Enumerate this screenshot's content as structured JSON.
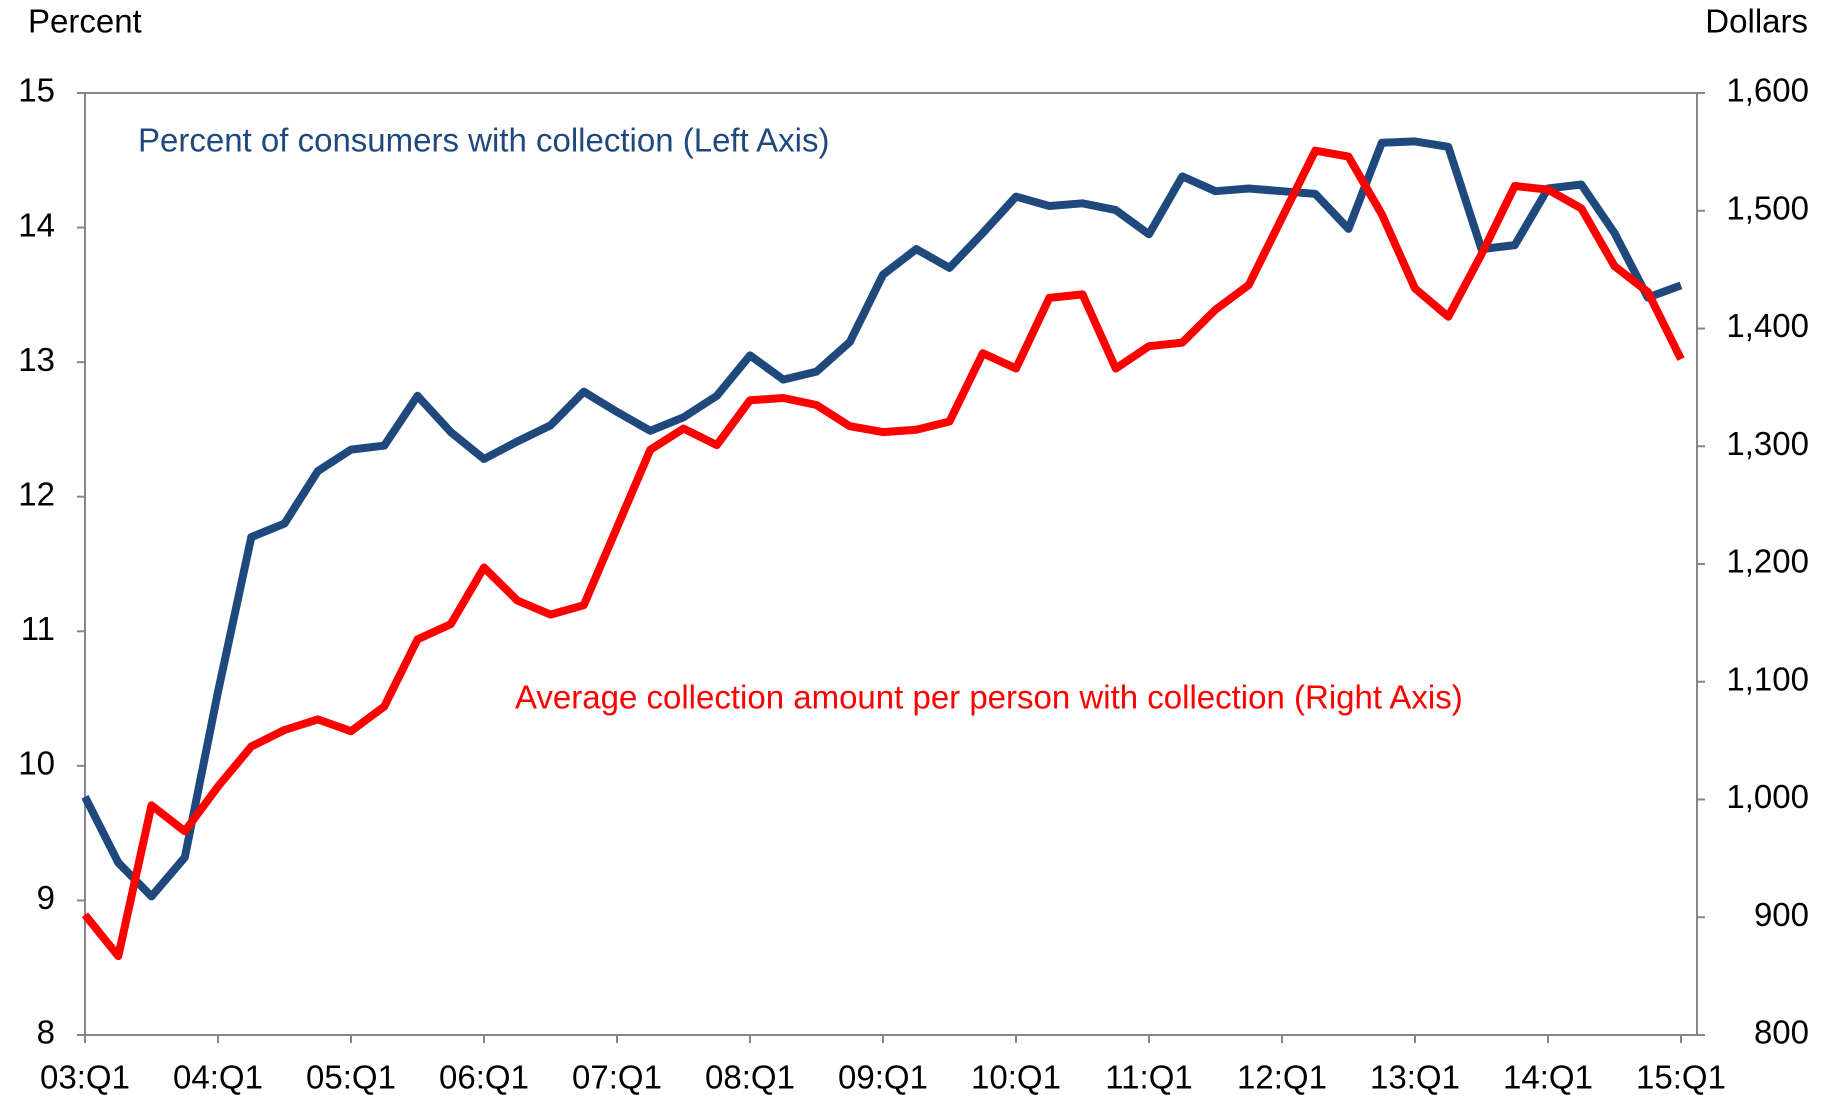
{
  "chart_data": {
    "type": "line",
    "y_label": "Percent",
    "y2_label": "Dollars",
    "categories": [
      "03:Q1",
      null,
      null,
      null,
      "04:Q1",
      null,
      null,
      null,
      "05:Q1",
      null,
      null,
      null,
      "06:Q1",
      null,
      null,
      null,
      "07:Q1",
      null,
      null,
      null,
      "08:Q1",
      null,
      null,
      null,
      "09:Q1",
      null,
      null,
      null,
      "10:Q1",
      null,
      null,
      null,
      "11:Q1",
      null,
      null,
      null,
      "12:Q1",
      null,
      null,
      null,
      "13:Q1",
      null,
      null,
      null,
      "14:Q1",
      null,
      null,
      null,
      "15:Q1"
    ],
    "series": [
      {
        "name": "Percent of consumers with collection (Left Axis)",
        "color": "#1f497d",
        "axis": "y",
        "values": [
          9.77,
          9.28,
          9.03,
          9.32,
          10.55,
          11.7,
          11.8,
          12.19,
          12.35,
          12.38,
          12.75,
          12.48,
          12.28,
          12.41,
          12.53,
          12.78,
          12.63,
          12.49,
          12.59,
          12.75,
          13.05,
          12.87,
          12.93,
          13.15,
          13.65,
          13.84,
          13.7,
          13.96,
          14.23,
          14.16,
          14.18,
          14.13,
          13.95,
          14.38,
          14.27,
          14.29,
          14.27,
          14.25,
          13.99,
          14.63,
          14.64,
          14.6,
          13.84,
          13.87,
          14.29,
          14.32,
          13.96,
          13.48,
          13.57
        ]
      },
      {
        "name": "Average collection amount per person with collection (Right Axis)",
        "color": "#ff0000",
        "axis": "y2",
        "values": [
          902,
          867,
          995,
          973,
          1011,
          1045,
          1059,
          1068,
          1058,
          1079,
          1136,
          1149,
          1197,
          1169,
          1157,
          1165,
          1231,
          1297,
          1315,
          1301,
          1339,
          1341,
          1335,
          1317,
          1312,
          1314,
          1321,
          1379,
          1366,
          1426,
          1429,
          1366,
          1385,
          1388,
          1416,
          1437,
          1494,
          1551,
          1546,
          1497,
          1434,
          1410,
          1463,
          1521,
          1518,
          1502,
          1453,
          1431,
          1374
        ]
      }
    ],
    "ylim": [
      8,
      15
    ],
    "yticks": [
      8,
      9,
      10,
      11,
      12,
      13,
      14,
      15
    ],
    "y2lim": [
      800,
      1600
    ],
    "y2ticks": [
      800,
      900,
      {
        "value": 1000,
        "label": "1,000"
      },
      {
        "value": 1100,
        "label": "1,100"
      },
      {
        "value": 1200,
        "label": "1,200"
      },
      {
        "value": 1300,
        "label": "1,300"
      },
      {
        "value": 1400,
        "label": "1,400"
      },
      {
        "value": 1500,
        "label": "1,500"
      },
      {
        "value": 1600,
        "label": "1,600"
      }
    ],
    "grid": false
  }
}
